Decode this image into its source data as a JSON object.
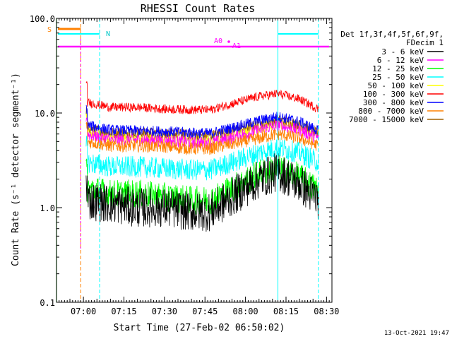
{
  "chart_data": {
    "type": "line",
    "title": "RHESSI Count Rates",
    "xlabel": "Start Time (27-Feb-02 06:50:02)",
    "ylabel": "Count Rate (s⁻¹ detector segment⁻¹)",
    "yscale": "log",
    "ylim": [
      0.1,
      100.0
    ],
    "xlim": [
      "06:50:02",
      "08:32"
    ],
    "x_ticks": [
      "07:00",
      "07:15",
      "07:30",
      "07:45",
      "08:00",
      "08:15",
      "08:30"
    ],
    "y_ticks": [
      "0.1",
      "1.0",
      "10.0",
      "100.0"
    ],
    "legend_title": "Det 1f,3f,4f,5f,6f,9f,",
    "legend_subtitle": "FDecim 1",
    "legend_position": "right",
    "series": [
      {
        "name": "3 - 6 keV",
        "color": "#000000",
        "x": [
          "07:01",
          "07:10",
          "07:20",
          "07:30",
          "07:40",
          "07:47",
          "07:55",
          "08:05",
          "08:12",
          "08:20",
          "08:27"
        ],
        "y": [
          1.2,
          1.1,
          1.0,
          1.0,
          0.9,
          0.9,
          1.3,
          2.0,
          2.4,
          1.8,
          1.2
        ]
      },
      {
        "name": "6 - 12 keV",
        "color": "#ff00ff",
        "x": [
          "07:01",
          "07:10",
          "07:20",
          "07:30",
          "07:40",
          "07:47",
          "07:55",
          "08:05",
          "08:12",
          "08:20",
          "08:27"
        ],
        "y": [
          6.0,
          5.2,
          5.2,
          5.1,
          4.9,
          4.8,
          5.5,
          6.6,
          7.4,
          6.6,
          5.4
        ]
      },
      {
        "name": "12 - 25 keV",
        "color": "#00ff00",
        "x": [
          "07:01",
          "07:10",
          "07:20",
          "07:30",
          "07:40",
          "07:47",
          "07:55",
          "08:05",
          "08:12",
          "08:20",
          "08:27"
        ],
        "y": [
          1.6,
          1.4,
          1.4,
          1.3,
          1.2,
          1.2,
          1.6,
          2.3,
          2.6,
          2.1,
          1.5
        ]
      },
      {
        "name": "25 - 50 keV",
        "color": "#00ffff",
        "x": [
          "07:01",
          "07:10",
          "07:20",
          "07:30",
          "07:40",
          "07:47",
          "07:55",
          "08:05",
          "08:12",
          "08:20",
          "08:27"
        ],
        "y": [
          3.0,
          2.7,
          2.7,
          2.6,
          2.5,
          2.5,
          3.0,
          3.8,
          4.3,
          3.8,
          3.0
        ]
      },
      {
        "name": "50 - 100 keV",
        "color": "#ffff00",
        "x": [
          "07:01",
          "07:10",
          "07:20",
          "07:30",
          "07:40",
          "07:47",
          "07:55",
          "08:05",
          "08:12",
          "08:20",
          "08:27"
        ],
        "y": [
          6.3,
          5.6,
          5.5,
          5.4,
          5.2,
          5.1,
          5.9,
          7.0,
          7.9,
          7.1,
          5.9
        ]
      },
      {
        "name": "100 - 300 keV",
        "color": "#ff0000",
        "x": [
          "07:01",
          "07:10",
          "07:20",
          "07:30",
          "07:40",
          "07:47",
          "07:55",
          "08:05",
          "08:12",
          "08:20",
          "08:27"
        ],
        "y": [
          13.0,
          11.5,
          11.5,
          11.0,
          10.8,
          10.8,
          12.5,
          15.0,
          16.0,
          14.0,
          11.0
        ]
      },
      {
        "name": "300 - 800 keV",
        "color": "#0000ff",
        "x": [
          "07:01",
          "07:10",
          "07:20",
          "07:30",
          "07:40",
          "07:47",
          "07:55",
          "08:05",
          "08:12",
          "08:20",
          "08:27"
        ],
        "y": [
          7.5,
          6.6,
          6.5,
          6.4,
          6.2,
          6.1,
          7.0,
          8.3,
          9.2,
          8.1,
          6.5
        ]
      },
      {
        "name": "800 - 7000 keV",
        "color": "#ff8000",
        "x": [
          "07:01",
          "07:10",
          "07:20",
          "07:30",
          "07:40",
          "07:47",
          "07:55",
          "08:05",
          "08:12",
          "08:20",
          "08:27"
        ],
        "y": [
          5.0,
          4.5,
          4.5,
          4.4,
          4.2,
          4.2,
          4.7,
          5.4,
          6.0,
          5.4,
          4.5
        ]
      },
      {
        "name": "7000 - 15000 keV",
        "color": "#a06000",
        "x": [
          "07:01",
          "07:10",
          "07:20",
          "07:30",
          "07:40",
          "07:47",
          "07:55",
          "08:05",
          "08:12",
          "08:20",
          "08:27"
        ],
        "y": [
          7.0,
          6.2,
          6.2,
          6.1,
          5.9,
          5.8,
          6.5,
          7.6,
          8.5,
          7.5,
          6.0
        ]
      }
    ],
    "annotations": {
      "S_label": "S",
      "N_label": "N",
      "A0_label": "A0",
      "A1_label": "A1"
    }
  },
  "footer": {
    "timestamp": "13-Oct-2021 19:47"
  }
}
